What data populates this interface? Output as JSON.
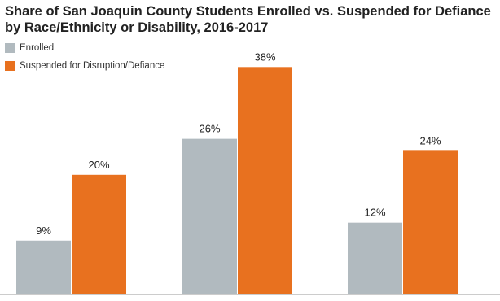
{
  "chart_data": {
    "type": "bar",
    "title": "Share of San Joaquin County Students Enrolled vs. Suspended for Defiance by Race/Ethnicity or Disability, 2016-2017",
    "categories": [
      null,
      null,
      null
    ],
    "series": [
      {
        "name": "Enrolled",
        "color": "#b1babf",
        "values": [
          9,
          26,
          12
        ],
        "value_labels": [
          "9%",
          "26%",
          "12%"
        ]
      },
      {
        "name": "Suspended for Disruption/Defiance",
        "color": "#e8711f",
        "values": [
          20,
          38,
          24
        ],
        "value_labels": [
          "20%",
          "38%",
          "24%"
        ]
      }
    ]
  }
}
